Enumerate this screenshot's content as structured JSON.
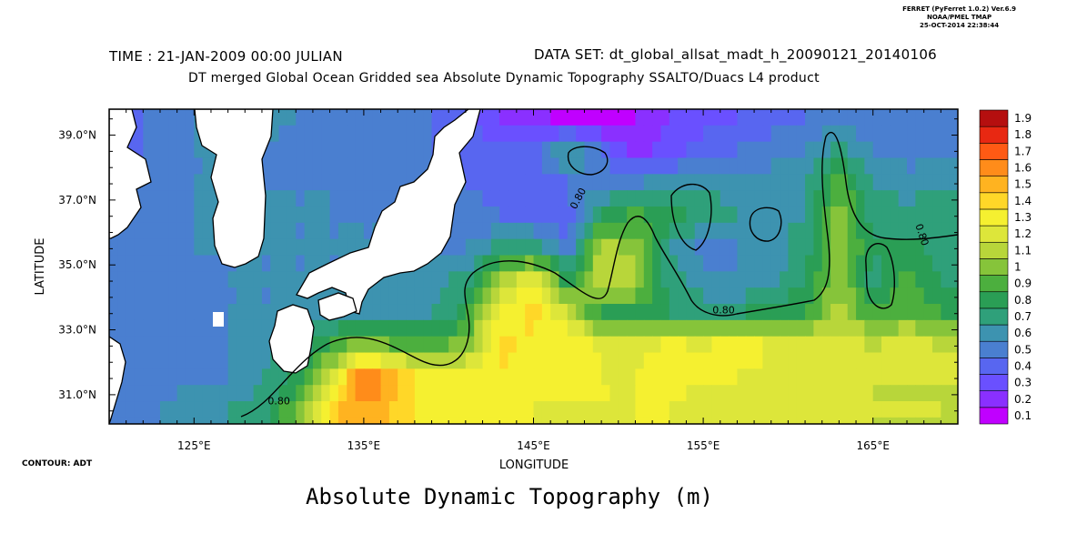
{
  "ferret_info": [
    "FERRET (PyFerret 1.0.2) Ver.6.9",
    "NOAA/PMEL TMAP",
    "25-OCT-2014 22:38:44"
  ],
  "header": {
    "time": "TIME : 21-JAN-2009 00:00 JULIAN",
    "dataset": "DATA SET: dt_global_allsat_madt_h_20090121_20140106",
    "title": "DT merged Global Ocean Gridded sea Absolute Dynamic Topography SSALTO/Duacs L4 product"
  },
  "contour_note": "CONTOUR: ADT",
  "figure_title": "Absolute Dynamic Topography (m)",
  "chart_data": {
    "type": "heatmap",
    "xlabel": "LONGITUDE",
    "ylabel": "LATITUDE",
    "xlim": [
      120,
      170
    ],
    "ylim": [
      30.1,
      39.8
    ],
    "x_ticks": [
      125,
      135,
      145,
      155,
      165
    ],
    "x_tick_labels": [
      "125°E",
      "135°E",
      "145°E",
      "155°E",
      "165°E"
    ],
    "y_ticks": [
      31,
      33,
      35,
      37,
      39
    ],
    "y_tick_labels": [
      "31.0°N",
      "33.0°N",
      "35.0°N",
      "37.0°N",
      "39.0°N"
    ],
    "colorbar": {
      "levels": [
        0.1,
        0.2,
        0.3,
        0.4,
        0.5,
        0.6,
        0.7,
        0.8,
        0.9,
        1,
        1.1,
        1.2,
        1.3,
        1.4,
        1.5,
        1.6,
        1.7,
        1.8,
        1.9
      ],
      "labels": [
        "0.1",
        "0.2",
        "0.3",
        "0.4",
        "0.5",
        "0.6",
        "0.7",
        "0.8",
        "0.9",
        "1",
        "1.1",
        "1.2",
        "1.3",
        "1.4",
        "1.5",
        "1.6",
        "1.7",
        "1.8",
        "1.9"
      ],
      "colors": [
        "#c000ff",
        "#8a30ff",
        "#6a50ff",
        "#5866f0",
        "#4a7fd0",
        "#3d93b0",
        "#2fa07a",
        "#2a9e55",
        "#4caf3e",
        "#86c43a",
        "#b8d63a",
        "#dde63a",
        "#f5f030",
        "#ffd728",
        "#ffb320",
        "#ff8c1a",
        "#ff5a14",
        "#e82812",
        "#b50f0f"
      ]
    },
    "contour_level": 0.8,
    "contour_labels": [
      "0.80",
      "0.80",
      "0.80",
      "0.80"
    ],
    "field": {
      "note": "ADT values (m) read from the color map; rows from north (39.5°N) to south (30.5°N), columns 121°E to 169°E every 2°",
      "lats": [
        39.5,
        38.5,
        37.5,
        36.5,
        35.5,
        34.5,
        33.5,
        32.5,
        31.5,
        30.5
      ],
      "lons": [
        121,
        123,
        125,
        127,
        129,
        131,
        133,
        135,
        137,
        139,
        141,
        143,
        145,
        147,
        149,
        151,
        153,
        155,
        157,
        159,
        161,
        163,
        165,
        167,
        169
      ],
      "values": [
        [
          0.45,
          0.55,
          0.6,
          0.65,
          0.65,
          0.6,
          0.55,
          0.55,
          0.5,
          0.5,
          0.45,
          0.3,
          0.25,
          0.15,
          0.15,
          0.2,
          0.3,
          0.35,
          0.4,
          0.45,
          0.5,
          0.55,
          0.55,
          0.55,
          0.6
        ],
        [
          0.45,
          0.55,
          0.6,
          0.6,
          0.6,
          0.55,
          0.5,
          0.5,
          0.5,
          0.5,
          0.45,
          0.4,
          0.45,
          0.75,
          0.5,
          0.25,
          0.35,
          0.45,
          0.5,
          0.55,
          0.6,
          0.75,
          0.6,
          0.55,
          0.6
        ],
        [
          0.5,
          0.55,
          0.6,
          0.6,
          0.6,
          0.6,
          0.6,
          0.55,
          0.55,
          0.55,
          0.5,
          0.45,
          0.4,
          0.5,
          0.6,
          0.6,
          0.65,
          0.7,
          0.65,
          0.65,
          0.7,
          0.95,
          0.7,
          0.65,
          0.65
        ],
        [
          0.5,
          0.55,
          0.6,
          0.65,
          0.65,
          0.6,
          0.6,
          0.6,
          0.6,
          0.6,
          0.55,
          0.5,
          0.45,
          0.45,
          0.8,
          0.95,
          0.85,
          0.75,
          0.7,
          0.7,
          0.7,
          1.1,
          0.75,
          0.75,
          0.8
        ],
        [
          0.5,
          0.55,
          0.6,
          0.6,
          0.6,
          0.6,
          0.6,
          0.6,
          0.6,
          0.6,
          0.6,
          0.75,
          0.8,
          0.5,
          1.2,
          1.05,
          0.7,
          0.55,
          0.6,
          0.65,
          0.75,
          1.1,
          0.8,
          0.85,
          0.75
        ],
        [
          0.5,
          0.55,
          0.55,
          0.6,
          0.6,
          0.6,
          0.6,
          0.6,
          0.6,
          0.65,
          0.75,
          1.1,
          1.35,
          0.85,
          1.2,
          1.15,
          0.75,
          0.65,
          0.6,
          0.65,
          0.8,
          1.1,
          0.75,
          0.95,
          0.8
        ],
        [
          0.5,
          0.55,
          0.55,
          0.6,
          0.6,
          0.6,
          0.65,
          0.7,
          0.7,
          0.7,
          0.85,
          1.3,
          1.45,
          1.2,
          0.85,
          0.85,
          0.8,
          0.75,
          0.8,
          0.85,
          0.9,
          1.15,
          0.9,
          1.0,
          0.9
        ],
        [
          0.5,
          0.55,
          0.55,
          0.6,
          0.65,
          0.75,
          0.9,
          1.1,
          1.0,
          0.95,
          1.05,
          1.45,
          1.35,
          1.4,
          1.3,
          1.25,
          1.35,
          1.3,
          1.4,
          1.3,
          1.25,
          1.3,
          1.2,
          1.25,
          1.2
        ],
        [
          0.5,
          0.55,
          0.6,
          0.6,
          0.7,
          0.85,
          1.2,
          1.75,
          1.5,
          1.35,
          1.4,
          1.4,
          1.35,
          1.4,
          1.3,
          1.3,
          1.35,
          1.3,
          1.3,
          1.25,
          1.2,
          1.25,
          1.2,
          1.2,
          1.2
        ],
        [
          0.55,
          0.6,
          0.65,
          0.7,
          0.75,
          1.0,
          1.45,
          1.6,
          1.45,
          1.35,
          1.3,
          1.3,
          1.3,
          1.25,
          1.3,
          1.3,
          1.3,
          1.25,
          1.25,
          1.2,
          1.2,
          1.2,
          1.2,
          1.2,
          1.2
        ]
      ]
    }
  }
}
